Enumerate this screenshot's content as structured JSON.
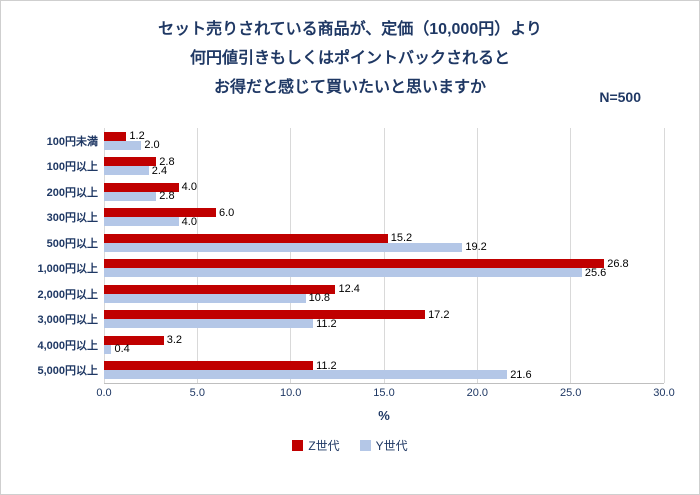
{
  "title": {
    "line1": "セット売りされている商品が、定価（10,000円）より",
    "line2": "何円値引きもしくはポイントバックされると",
    "line3": "お得だと感じて買いたいと思いますか",
    "n_label": "N=500"
  },
  "chart_data": {
    "type": "bar",
    "orientation": "horizontal",
    "categories": [
      "100円未満",
      "100円以上",
      "200円以上",
      "300円以上",
      "500円以上",
      "1,000円以上",
      "2,000円以上",
      "3,000円以上",
      "4,000円以上",
      "5,000円以上"
    ],
    "series": [
      {
        "name": "Z世代",
        "color": "#C00000",
        "values": [
          1.2,
          2.8,
          4.0,
          6.0,
          15.2,
          26.8,
          12.4,
          17.2,
          3.2,
          11.2
        ]
      },
      {
        "name": "Y世代",
        "color": "#B4C7E7",
        "values": [
          2.0,
          2.4,
          2.8,
          4.0,
          19.2,
          25.6,
          10.8,
          11.2,
          0.4,
          21.6
        ]
      }
    ],
    "xlabel": "%",
    "xlim": [
      0,
      30
    ],
    "xticks": [
      0,
      5,
      10,
      15,
      20,
      25,
      30
    ],
    "xtick_labels": [
      "0.0",
      "5.0",
      "10.0",
      "15.0",
      "20.0",
      "25.0",
      "30.0"
    ],
    "grid": true,
    "legend_position": "bottom",
    "value_labels": true
  },
  "colors": {
    "title_text": "#1F3864",
    "axis_text": "#1F3864",
    "value_text": "#000000",
    "gridline": "#D9D9D9",
    "axis_line": "#BFBFBF",
    "border": "#CFCFCF"
  }
}
